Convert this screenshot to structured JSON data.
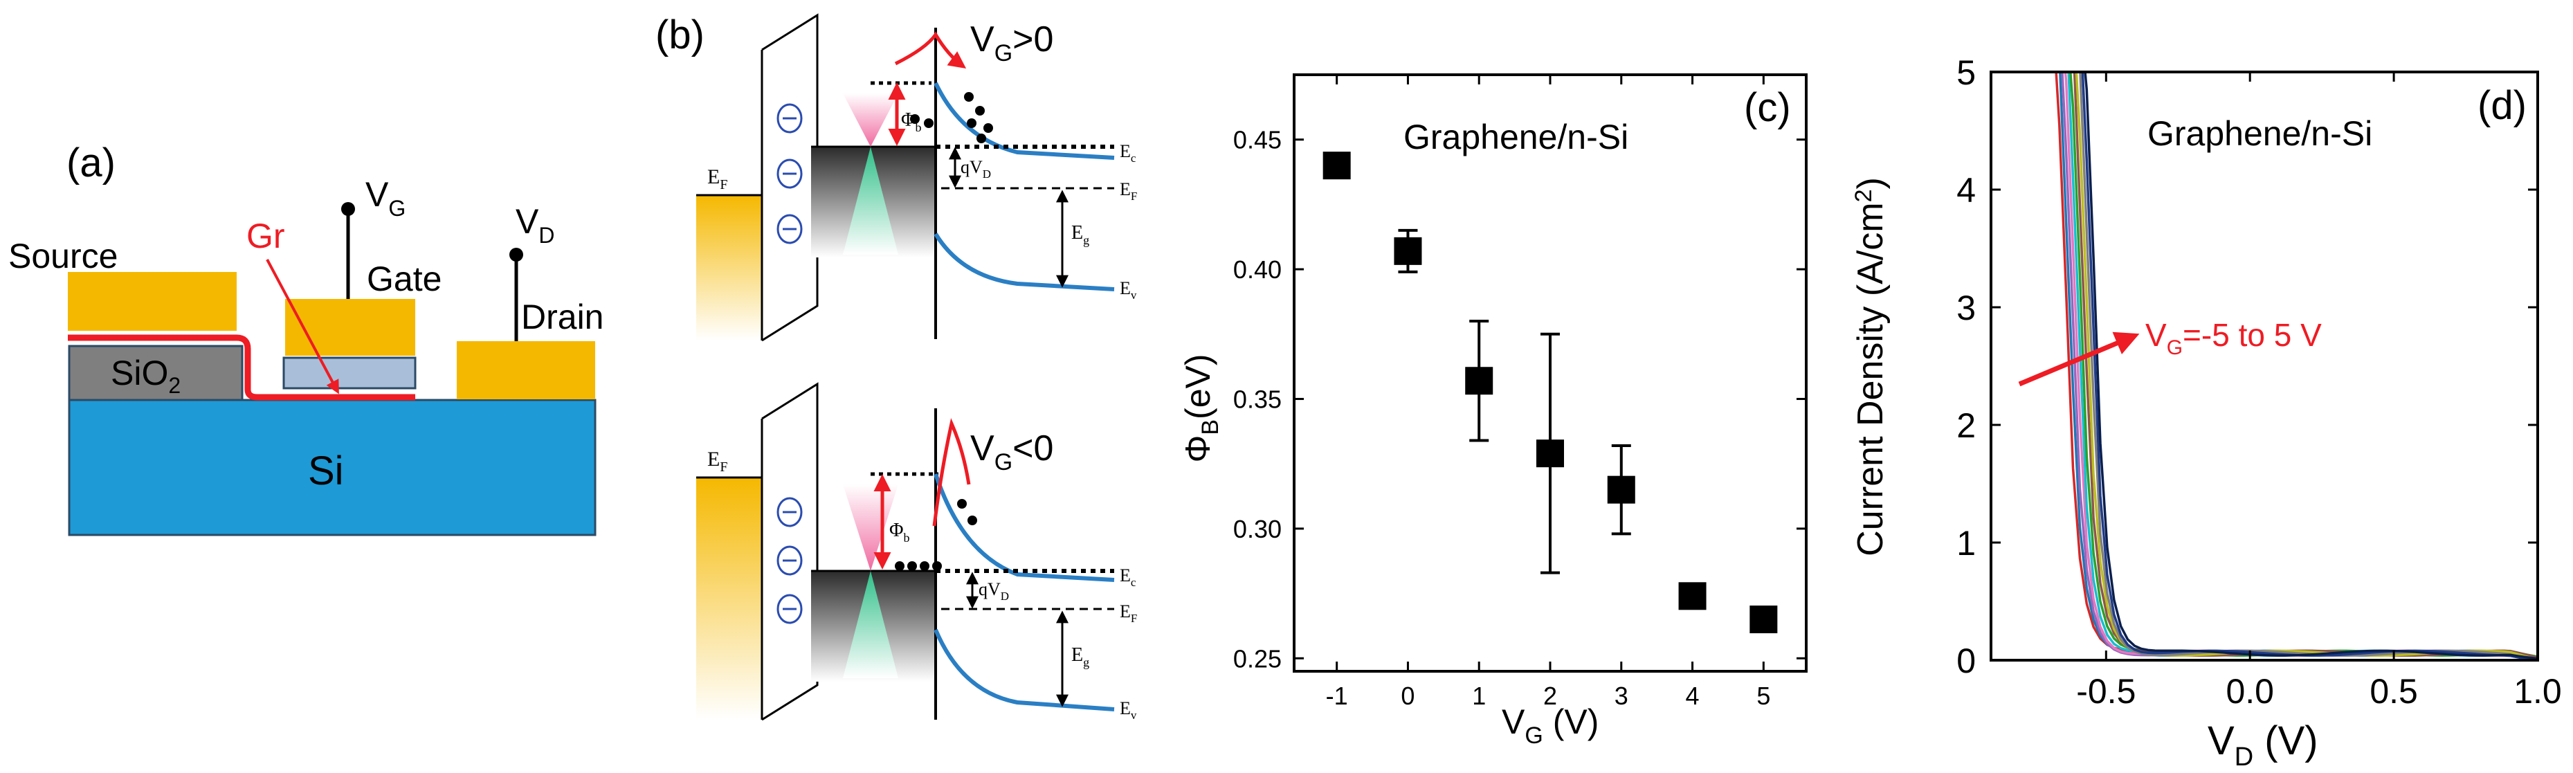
{
  "colors": {
    "gold": "#f5b800",
    "si_blue": "#1e9ad6",
    "sio2_gray": "#7f7f7f",
    "gate_ox": "#a9bfd9",
    "graphene_red": "#ee1c24",
    "band_blue": "#2a7fc4",
    "dirac_pink": "#f06aa0",
    "dirac_green": "#2ebf88"
  },
  "panel_a": {
    "label": "(a)",
    "source": "Source",
    "gate": "Gate",
    "drain": "Drain",
    "gr": "Gr",
    "sio2": "SiO",
    "sio2_sub": "2",
    "si": "Si",
    "vg": "V",
    "vg_sub": "G",
    "vd": "V",
    "vd_sub": "D"
  },
  "panel_b": {
    "label": "(b)",
    "top_title": "V",
    "top_title_sub": "G",
    "top_title_rest": ">0",
    "bot_title": "V",
    "bot_title_sub": "G",
    "bot_title_rest": "<0",
    "ef": "E",
    "ef_sub": "F",
    "ec": "E",
    "ec_sub": "c",
    "ev": "E",
    "ev_sub": "v",
    "eg": "E",
    "eg_sub": "g",
    "phib": "Φ",
    "phib_sub": "b",
    "qvd": "qV",
    "qvd_sub": "D"
  },
  "panel_c": {
    "label": "(c)",
    "annotation": "Graphene/n-Si",
    "ylabel": "Φ",
    "ylabel_sub": "B",
    "ylabel_rest": "(eV)",
    "xlabel": "V",
    "xlabel_sub": "G",
    "xlabel_rest": " (V)"
  },
  "panel_d": {
    "label": "(d)",
    "annotation": "Graphene/n-Si",
    "arrow_label": "V",
    "arrow_label_sub": "G",
    "arrow_label_rest": "=-5 to 5 V",
    "ylabel": "Current Density (A/cm",
    "ylabel_sup": "2",
    "ylabel_end": ")",
    "xlabel": "V",
    "xlabel_sub": "D",
    "xlabel_rest": " (V)"
  },
  "chart_data": [
    {
      "type": "scatter",
      "panel": "(c)",
      "xlabel": "V_G (V)",
      "ylabel": "Φ_B(eV)",
      "xlim": [
        -1.6,
        5.6
      ],
      "ylim": [
        0.245,
        0.475
      ],
      "xticks": [
        "-1",
        "0",
        "1",
        "2",
        "3",
        "4",
        "5"
      ],
      "yticks": [
        "0.25",
        "0.30",
        "0.35",
        "0.40",
        "0.45"
      ],
      "points": [
        {
          "x": -1,
          "y": 0.44,
          "err": 0.0
        },
        {
          "x": 0,
          "y": 0.407,
          "err": 0.008
        },
        {
          "x": 1,
          "y": 0.357,
          "err": 0.023
        },
        {
          "x": 2,
          "y": 0.329,
          "err": 0.046
        },
        {
          "x": 3,
          "y": 0.315,
          "err": 0.017
        },
        {
          "x": 4,
          "y": 0.274,
          "err": 0.0
        },
        {
          "x": 5,
          "y": 0.265,
          "err": 0.0
        }
      ],
      "annotation": "Graphene/n-Si"
    },
    {
      "type": "line",
      "panel": "(d)",
      "xlabel": "V_D (V)",
      "ylabel": "Current Density (A/cm^2)",
      "xlim": [
        -0.9,
        1.0
      ],
      "ylim": [
        0,
        5
      ],
      "xticks": [
        "-0.5",
        "0.0",
        "0.5",
        "1.0"
      ],
      "yticks": [
        "0",
        "1",
        "2",
        "3",
        "4",
        "5"
      ],
      "annotation": "Graphene/n-Si",
      "arrow_label": "V_G=-5 to 5 V",
      "series": [
        {
          "color": "#d62728",
          "turn_on": -0.62
        },
        {
          "color": "#1f77b4",
          "turn_on": -0.61
        },
        {
          "color": "#9467bd",
          "turn_on": -0.6
        },
        {
          "color": "#e377c2",
          "turn_on": -0.59
        },
        {
          "color": "#17becf",
          "turn_on": -0.58
        },
        {
          "color": "#2ca02c",
          "turn_on": -0.57
        },
        {
          "color": "#8c564b",
          "turn_on": -0.56
        },
        {
          "color": "#bcbd22",
          "turn_on": -0.55
        },
        {
          "color": "#7f7f7f",
          "turn_on": -0.54
        },
        {
          "color": "#1f3c88",
          "turn_on": -0.53
        },
        {
          "color": "#0b1f4d",
          "turn_on": -0.52
        }
      ]
    }
  ]
}
